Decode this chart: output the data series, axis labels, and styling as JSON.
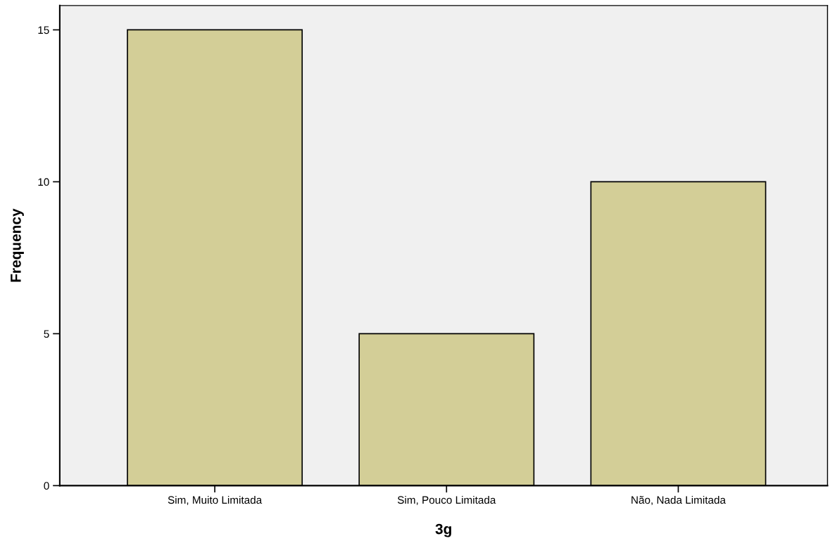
{
  "chart_data": {
    "type": "bar",
    "xlabel": "3g",
    "ylabel": "Frequency",
    "categories": [
      "Sim, Muito Limitada",
      "Sim, Pouco Limitada",
      "Não, Nada Limitada"
    ],
    "values": [
      15,
      5,
      10
    ],
    "color": "#d3ce97",
    "ylim": [
      0,
      15.8
    ],
    "yticks": [
      0,
      5,
      10,
      15
    ],
    "grid": false,
    "legend": false
  }
}
